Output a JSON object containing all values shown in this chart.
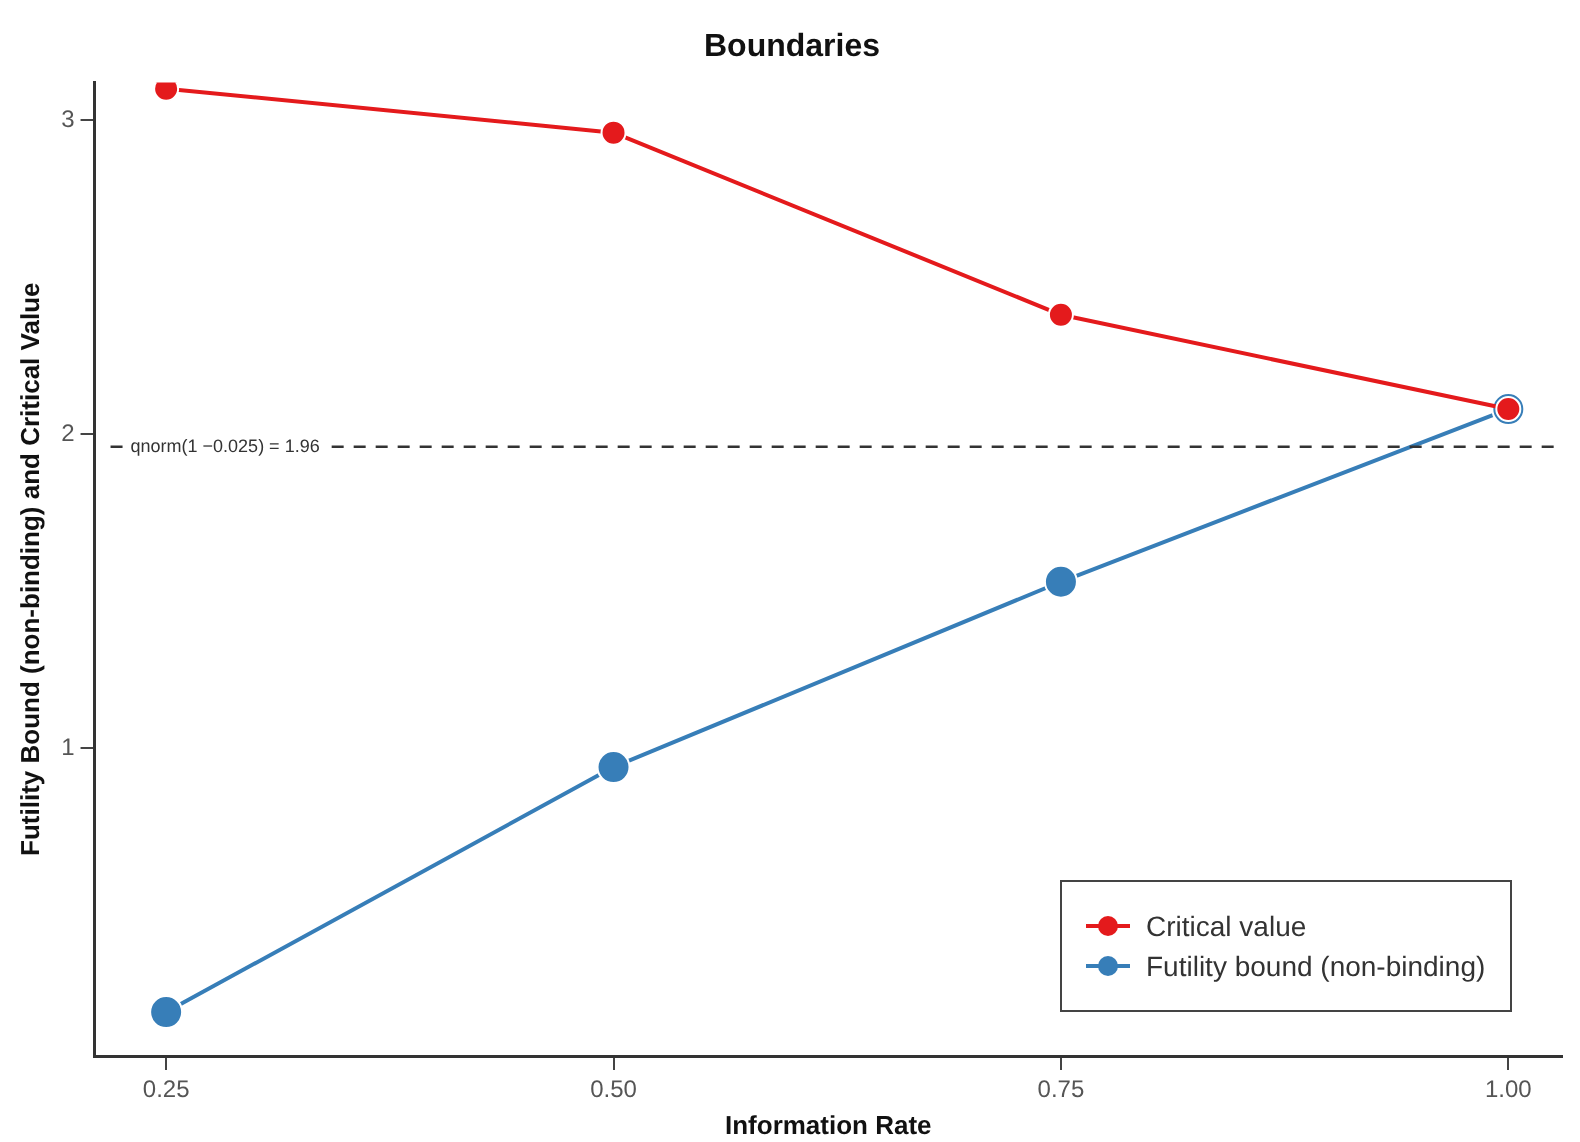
{
  "chart_data": {
    "type": "line",
    "title": "Boundaries",
    "xlabel": "Information Rate",
    "ylabel": "Futility Bound (non-binding) and Critical Value",
    "x": [
      0.25,
      0.5,
      0.75,
      1.0
    ],
    "series": [
      {
        "name": "Critical value",
        "color": "#e41a1c",
        "values": [
          3.1,
          2.96,
          2.38,
          2.08
        ]
      },
      {
        "name": "Futility bound (non-binding)",
        "color": "#377eb8",
        "values": [
          0.16,
          0.94,
          1.53,
          2.08
        ]
      }
    ],
    "xlim": [
      0.21,
      1.03
    ],
    "xticks": [
      {
        "value": 0.25,
        "label": "0.25"
      },
      {
        "value": 0.5,
        "label": "0.50"
      },
      {
        "value": 0.75,
        "label": "0.75"
      },
      {
        "value": 1.0,
        "label": "1.00"
      }
    ],
    "ylim": [
      0.02,
      3.12
    ],
    "yticks": [
      1,
      2,
      3
    ],
    "ref_lines": [
      {
        "axis": "y",
        "value": 1.96,
        "label": "qnorm(1 −0.025) = 1.96",
        "color": "#333333",
        "line_style": "dashed"
      }
    ],
    "grid": false,
    "legend": "bottom right",
    "marker": "circle",
    "line_style": "solid"
  }
}
